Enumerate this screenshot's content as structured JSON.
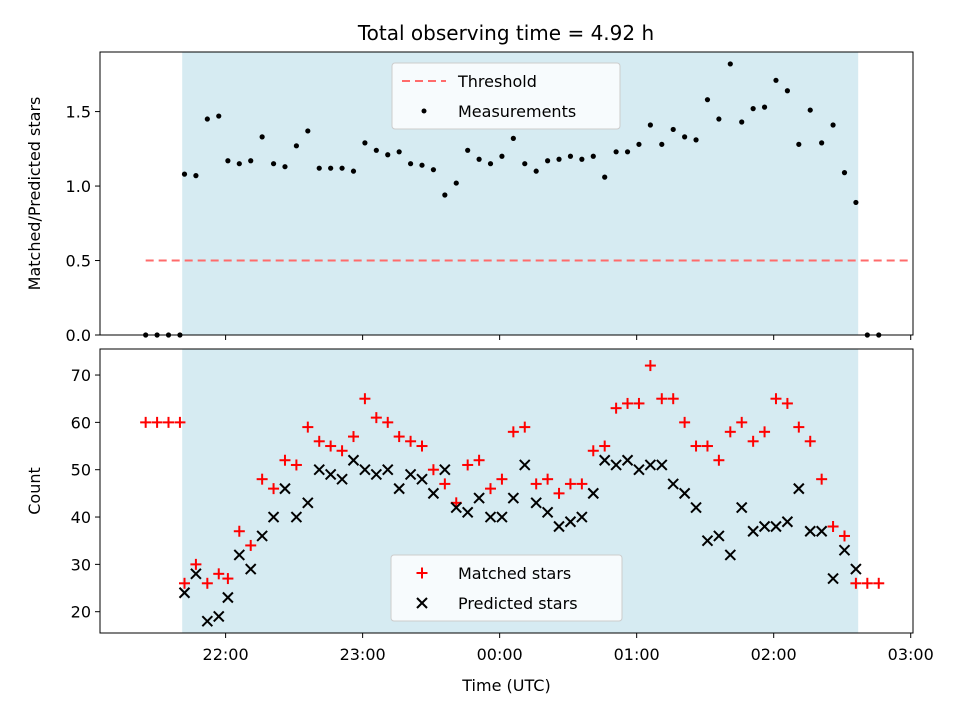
{
  "chart_data": {
    "title": "Total observing time = 4.92 h",
    "xlabel": "Time (UTC)",
    "x_tick_labels": [
      "22:00",
      "23:00",
      "00:00",
      "01:00",
      "02:00",
      "03:00"
    ],
    "x_tick_times": [
      "22:00",
      "23:00",
      "24:00",
      "25:00",
      "26:00",
      "27:00"
    ],
    "xlim": [
      "21:05",
      "27:01"
    ],
    "shaded_interval": {
      "start": "21:41",
      "end": "26:37",
      "color": "#add8e6",
      "opacity": 0.5
    },
    "colors": {
      "threshold": "#ff6b6b",
      "measurements": "#000000",
      "matched": "#ff0000",
      "predicted": "#000000"
    },
    "panels": [
      {
        "type": "scatter",
        "ylabel": "Matched/Predicted stars",
        "ylim": [
          0,
          1.9
        ],
        "yticks": [
          0.0,
          0.5,
          1.0,
          1.5
        ],
        "y_tick_labels": [
          "0.0",
          "0.5",
          "1.0",
          "1.5"
        ],
        "threshold": {
          "name": "Threshold",
          "value": 0.5,
          "x_start": "21:25",
          "x_end": "27:00"
        },
        "series": [
          {
            "name": "Measurements",
            "marker": "dot",
            "x": [
              "21:25",
              "21:30",
              "21:35",
              "21:40",
              "21:42",
              "21:47",
              "21:52",
              "21:57",
              "22:01",
              "22:06",
              "22:11",
              "22:16",
              "22:21",
              "22:26",
              "22:31",
              "22:36",
              "22:41",
              "22:46",
              "22:51",
              "22:56",
              "23:01",
              "23:06",
              "23:11",
              "23:16",
              "23:21",
              "23:26",
              "23:31",
              "23:36",
              "23:41",
              "23:46",
              "23:51",
              "23:56",
              "24:01",
              "24:06",
              "24:11",
              "24:16",
              "24:21",
              "24:26",
              "24:31",
              "24:36",
              "24:41",
              "24:46",
              "24:51",
              "24:56",
              "25:01",
              "25:06",
              "25:11",
              "25:16",
              "25:21",
              "25:26",
              "25:31",
              "25:36",
              "25:41",
              "25:46",
              "25:51",
              "25:56",
              "26:01",
              "26:06",
              "26:11",
              "26:16",
              "26:21",
              "26:26",
              "26:31",
              "26:36",
              "26:41",
              "26:46"
            ],
            "y": [
              0.0,
              0.0,
              0.0,
              0.0,
              1.08,
              1.07,
              1.45,
              1.47,
              1.17,
              1.15,
              1.17,
              1.33,
              1.15,
              1.13,
              1.27,
              1.37,
              1.12,
              1.12,
              1.12,
              1.1,
              1.29,
              1.24,
              1.21,
              1.23,
              1.15,
              1.14,
              1.11,
              0.94,
              1.02,
              1.24,
              1.18,
              1.15,
              1.2,
              1.32,
              1.15,
              1.1,
              1.17,
              1.18,
              1.2,
              1.18,
              1.2,
              1.06,
              1.23,
              1.23,
              1.28,
              1.41,
              1.28,
              1.38,
              1.33,
              1.31,
              1.58,
              1.45,
              1.82,
              1.43,
              1.52,
              1.53,
              1.71,
              1.64,
              1.28,
              1.51,
              1.29,
              1.41,
              1.09,
              0.89,
              0.0,
              0.0
            ]
          }
        ]
      },
      {
        "type": "scatter",
        "ylabel": "Count",
        "ylim": [
          15.5,
          75.5
        ],
        "yticks": [
          20,
          30,
          40,
          50,
          60,
          70
        ],
        "y_tick_labels": [
          "20",
          "30",
          "40",
          "50",
          "60",
          "70"
        ],
        "series": [
          {
            "name": "Matched stars",
            "marker": "plus",
            "x": [
              "21:25",
              "21:30",
              "21:35",
              "21:40",
              "21:42",
              "21:47",
              "21:52",
              "21:57",
              "22:01",
              "22:06",
              "22:11",
              "22:16",
              "22:21",
              "22:26",
              "22:31",
              "22:36",
              "22:41",
              "22:46",
              "22:51",
              "22:56",
              "23:01",
              "23:06",
              "23:11",
              "23:16",
              "23:21",
              "23:26",
              "23:31",
              "23:36",
              "23:41",
              "23:46",
              "23:51",
              "23:56",
              "24:01",
              "24:06",
              "24:11",
              "24:16",
              "24:21",
              "24:26",
              "24:31",
              "24:36",
              "24:41",
              "24:46",
              "24:51",
              "24:56",
              "25:01",
              "25:06",
              "25:11",
              "25:16",
              "25:21",
              "25:26",
              "25:31",
              "25:36",
              "25:41",
              "25:46",
              "25:51",
              "25:56",
              "26:01",
              "26:06",
              "26:11",
              "26:16",
              "26:21",
              "26:26",
              "26:31",
              "26:36",
              "26:41",
              "26:46"
            ],
            "y": [
              60,
              60,
              60,
              60,
              26,
              30,
              26,
              28,
              27,
              37,
              34,
              48,
              46,
              52,
              51,
              59,
              56,
              55,
              54,
              57,
              65,
              61,
              60,
              57,
              56,
              55,
              50,
              47,
              43,
              51,
              52,
              46,
              48,
              58,
              59,
              47,
              48,
              45,
              47,
              47,
              54,
              55,
              63,
              64,
              64,
              72,
              65,
              65,
              60,
              55,
              55,
              52,
              58,
              60,
              56,
              58,
              65,
              64,
              59,
              56,
              48,
              38,
              36,
              26,
              26,
              26
            ]
          },
          {
            "name": "Predicted stars",
            "marker": "x",
            "x": [
              "21:42",
              "21:47",
              "21:52",
              "21:57",
              "22:01",
              "22:06",
              "22:11",
              "22:16",
              "22:21",
              "22:26",
              "22:31",
              "22:36",
              "22:41",
              "22:46",
              "22:51",
              "22:56",
              "23:01",
              "23:06",
              "23:11",
              "23:16",
              "23:21",
              "23:26",
              "23:31",
              "23:36",
              "23:41",
              "23:46",
              "23:51",
              "23:56",
              "24:01",
              "24:06",
              "24:11",
              "24:16",
              "24:21",
              "24:26",
              "24:31",
              "24:36",
              "24:41",
              "24:46",
              "24:51",
              "24:56",
              "25:01",
              "25:06",
              "25:11",
              "25:16",
              "25:21",
              "25:26",
              "25:31",
              "25:36",
              "25:41",
              "25:46",
              "25:51",
              "25:56",
              "26:01",
              "26:06",
              "26:11",
              "26:16",
              "26:21",
              "26:26",
              "26:31",
              "26:36"
            ],
            "y": [
              24,
              28,
              18,
              19,
              23,
              32,
              29,
              36,
              40,
              46,
              40,
              43,
              50,
              49,
              48,
              52,
              50,
              49,
              50,
              46,
              49,
              48,
              45,
              50,
              42,
              41,
              44,
              40,
              40,
              44,
              51,
              43,
              41,
              38,
              39,
              40,
              45,
              52,
              51,
              52,
              50,
              51,
              51,
              47,
              45,
              42,
              35,
              36,
              32,
              42,
              37,
              38,
              38,
              39,
              46,
              37,
              37,
              27,
              33,
              29
            ]
          }
        ]
      }
    ]
  }
}
